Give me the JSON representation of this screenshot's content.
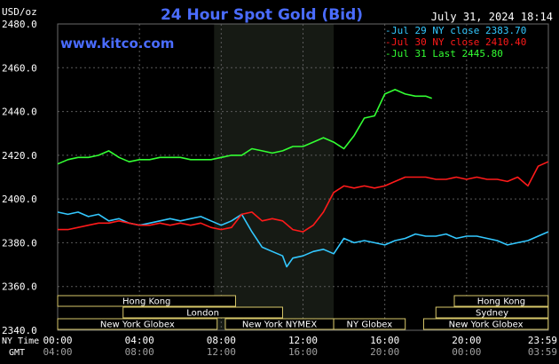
{
  "header": {
    "units": "USD/oz",
    "title": "24 Hour Spot Gold (Bid)",
    "timestamp": "July 31, 2024 18:14",
    "watermark": "www.kitco.com"
  },
  "legend": [
    {
      "label": "Jul 29 NY close 2383.70",
      "color": "#33c8ff"
    },
    {
      "label": "Jul 30 NY close 2410.40",
      "color": "#ff1a1a"
    },
    {
      "label": "Jul 31 Last 2445.80",
      "color": "#33ff33"
    }
  ],
  "time_axis": {
    "ny_label": "NY Time",
    "gmt_label": "GMT",
    "ny_ticks": [
      "00:00",
      "04:00",
      "08:00",
      "12:00",
      "16:00",
      "20:00",
      "23:59"
    ],
    "gmt_ticks": [
      "04:00",
      "08:00",
      "12:00",
      "16:00",
      "20:00",
      "00:00",
      "03:59"
    ]
  },
  "markets": [
    {
      "name": "Hong Kong",
      "start": 0,
      "end": 8.7,
      "row": 0
    },
    {
      "name": "Hong Kong",
      "start": 19.4,
      "end": 23.99,
      "row": 0
    },
    {
      "name": "London",
      "start": 3.2,
      "end": 11.0,
      "row": 1
    },
    {
      "name": "Sydney",
      "start": 18.5,
      "end": 23.99,
      "row": 1
    },
    {
      "name": "New York Globex",
      "start": 0,
      "end": 7.8,
      "row": 2
    },
    {
      "name": "New York NYMEX",
      "start": 8.2,
      "end": 13.5,
      "row": 2
    },
    {
      "name": "NY Globex",
      "start": 13.5,
      "end": 17.0,
      "row": 2
    },
    {
      "name": "New York Globex",
      "start": 17.9,
      "end": 23.99,
      "row": 2
    }
  ],
  "chart_data": {
    "type": "line",
    "title": "24 Hour Spot Gold (Bid)",
    "ylabel": "USD/oz",
    "ylim": [
      2340,
      2480
    ],
    "yticks": [
      "2340.0",
      "2360.0",
      "2380.0",
      "2400.0",
      "2420.0",
      "2440.0",
      "2460.0",
      "2480.0"
    ],
    "xlim": [
      0,
      24
    ],
    "grid": true,
    "legend_position": "top-right",
    "highlight_range": [
      7.65,
      13.5
    ],
    "series": [
      {
        "name": "Jul 29 NY close 2383.70",
        "color": "#33c8ff",
        "x": [
          0,
          0.5,
          1,
          1.5,
          2,
          2.5,
          3,
          3.5,
          4,
          4.5,
          5,
          5.5,
          6,
          6.5,
          7,
          7.5,
          8,
          8.5,
          9,
          9.5,
          10,
          10.5,
          11,
          11.2,
          11.5,
          12,
          12.5,
          13,
          13.5,
          14,
          14.5,
          15,
          15.5,
          16,
          16.5,
          17,
          17.5,
          18,
          18.5,
          19,
          19.5,
          20,
          20.5,
          21,
          21.5,
          22,
          22.5,
          23,
          23.5,
          23.99
        ],
        "y": [
          2394,
          2393,
          2394,
          2392,
          2393,
          2390,
          2391,
          2389,
          2388,
          2389,
          2390,
          2391,
          2390,
          2391,
          2392,
          2390,
          2388,
          2390,
          2393,
          2385,
          2378,
          2376,
          2374,
          2369,
          2373,
          2374,
          2376,
          2377,
          2375,
          2382,
          2380,
          2381,
          2380,
          2379,
          2381,
          2382,
          2384,
          2383,
          2383,
          2384,
          2382,
          2383,
          2383,
          2382,
          2381,
          2379,
          2380,
          2381,
          2383,
          2385
        ]
      },
      {
        "name": "Jul 30 NY close 2410.40",
        "color": "#ff1a1a",
        "x": [
          0,
          0.5,
          1,
          1.5,
          2,
          2.5,
          3,
          3.5,
          4,
          4.5,
          5,
          5.5,
          6,
          6.5,
          7,
          7.5,
          8,
          8.5,
          9,
          9.5,
          10,
          10.5,
          11,
          11.5,
          12,
          12.5,
          13,
          13.5,
          14,
          14.5,
          15,
          15.5,
          16,
          16.5,
          17,
          17.5,
          18,
          18.5,
          19,
          19.5,
          20,
          20.5,
          21,
          21.5,
          22,
          22.5,
          23,
          23.5,
          23.99
        ],
        "y": [
          2386,
          2386,
          2387,
          2388,
          2389,
          2389,
          2390,
          2389,
          2388,
          2388,
          2389,
          2388,
          2389,
          2388,
          2389,
          2387,
          2386,
          2387,
          2393,
          2394,
          2390,
          2391,
          2390,
          2386,
          2385,
          2388,
          2394,
          2403,
          2406,
          2405,
          2406,
          2405,
          2406,
          2408,
          2410,
          2410,
          2410,
          2409,
          2409,
          2410,
          2409,
          2410,
          2409,
          2409,
          2408,
          2410,
          2406,
          2415,
          2417
        ]
      },
      {
        "name": "Jul 31 Last 2445.80",
        "color": "#33ff33",
        "x": [
          0,
          0.5,
          1,
          1.5,
          2,
          2.5,
          3,
          3.5,
          4,
          4.5,
          5,
          5.5,
          6,
          6.5,
          7,
          7.5,
          8,
          8.5,
          9,
          9.5,
          10,
          10.5,
          11,
          11.5,
          12,
          12.5,
          13,
          13.5,
          14,
          14.5,
          15,
          15.5,
          16,
          16.5,
          17,
          17.5,
          18,
          18.3
        ],
        "y": [
          2416,
          2418,
          2419,
          2419,
          2420,
          2422,
          2419,
          2417,
          2418,
          2418,
          2419,
          2419,
          2419,
          2418,
          2418,
          2418,
          2419,
          2420,
          2420,
          2423,
          2422,
          2421,
          2422,
          2424,
          2424,
          2426,
          2428,
          2426,
          2423,
          2429,
          2437,
          2438,
          2448,
          2450,
          2448,
          2447,
          2447,
          2446
        ]
      }
    ]
  }
}
